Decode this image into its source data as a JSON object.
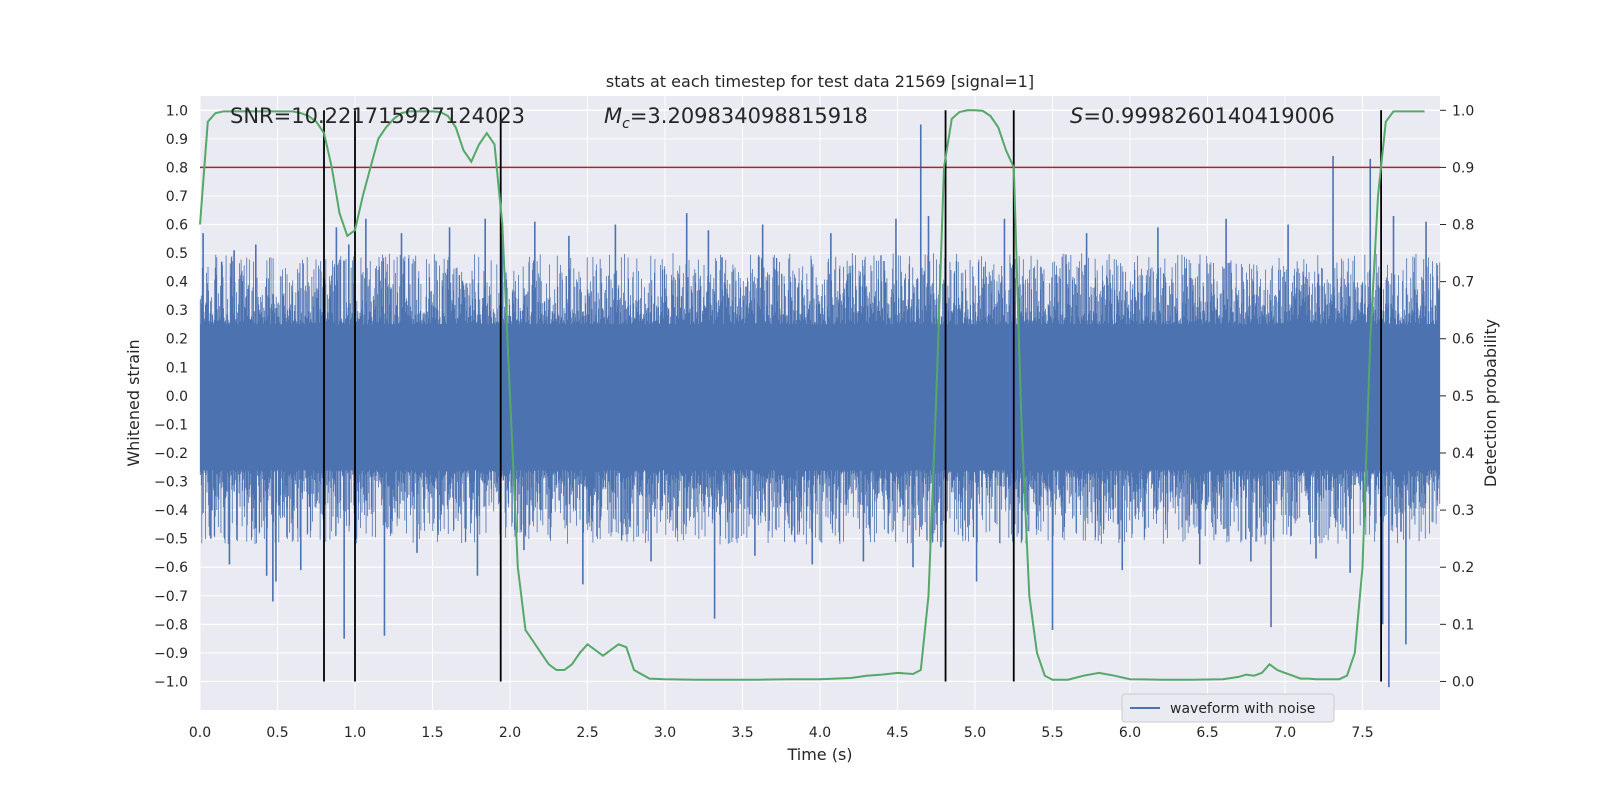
{
  "chart_data": {
    "type": "line",
    "title": "stats at each timestep for test data 21569 [signal=1]",
    "xlabel": "Time (s)",
    "ylabel": "Whitened strain",
    "y2label": "Detection probability",
    "xlim": [
      0.0,
      8.0
    ],
    "ylim": [
      -1.1,
      1.05
    ],
    "y2lim": [
      -0.05,
      1.025
    ],
    "xticks": [
      "0.0",
      "0.5",
      "1.0",
      "1.5",
      "2.0",
      "2.5",
      "3.0",
      "3.5",
      "4.0",
      "4.5",
      "5.0",
      "5.5",
      "6.0",
      "6.5",
      "7.0",
      "7.5"
    ],
    "yticks": [
      "1.0",
      "0.9",
      "0.8",
      "0.7",
      "0.6",
      "0.5",
      "0.4",
      "0.3",
      "0.2",
      "0.1",
      "0.0",
      "−0.1",
      "−0.2",
      "−0.3",
      "−0.4",
      "−0.5",
      "−0.6",
      "−0.7",
      "−0.8",
      "−0.9",
      "−1.0"
    ],
    "y2ticks": [
      "1.0",
      "0.9",
      "0.8",
      "0.7",
      "0.6",
      "0.5",
      "0.4",
      "0.3",
      "0.2",
      "0.1",
      "0.0"
    ],
    "annotations": {
      "snr": "SNR=10.221715927124023",
      "mc_symbol": "M",
      "mc_sub": "c",
      "mc_value": "=3.209834098815918",
      "s_symbol": "S",
      "s_value": "=0.9998260140419006"
    },
    "legend": {
      "label": "waveform with noise",
      "position": "lower right"
    },
    "grid": true,
    "threshold": {
      "value": 0.9,
      "axis": "right",
      "color": "#b22222"
    },
    "vlines": [
      0.8,
      1.0,
      1.94,
      4.81,
      5.25,
      7.62
    ],
    "waveform": {
      "name": "waveform with noise",
      "color": "#4c72b0",
      "core_band": [
        -0.26,
        0.25
      ],
      "typical_range": [
        -0.42,
        0.4
      ],
      "spikes": [
        [
          0.02,
          0.57
        ],
        [
          0.07,
          -0.5
        ],
        [
          0.14,
          0.47
        ],
        [
          0.19,
          -0.59
        ],
        [
          0.22,
          0.51
        ],
        [
          0.36,
          0.53
        ],
        [
          0.43,
          -0.63
        ],
        [
          0.47,
          -0.72
        ],
        [
          0.49,
          -0.65
        ],
        [
          0.65,
          -0.61
        ],
        [
          0.88,
          0.59
        ],
        [
          0.93,
          -0.85
        ],
        [
          0.96,
          0.53
        ],
        [
          1.07,
          0.62
        ],
        [
          1.19,
          -0.84
        ],
        [
          1.3,
          0.57
        ],
        [
          1.4,
          -0.55
        ],
        [
          1.61,
          0.59
        ],
        [
          1.79,
          -0.63
        ],
        [
          1.84,
          0.62
        ],
        [
          1.95,
          0.57
        ],
        [
          2.09,
          -0.54
        ],
        [
          2.16,
          0.61
        ],
        [
          2.38,
          0.56
        ],
        [
          2.47,
          -0.66
        ],
        [
          2.68,
          0.6
        ],
        [
          2.91,
          -0.58
        ],
        [
          3.14,
          0.64
        ],
        [
          3.28,
          0.58
        ],
        [
          3.32,
          -0.78
        ],
        [
          3.58,
          -0.56
        ],
        [
          3.63,
          0.6
        ],
        [
          3.95,
          -0.59
        ],
        [
          4.07,
          0.57
        ],
        [
          4.28,
          -0.58
        ],
        [
          4.49,
          0.62
        ],
        [
          4.6,
          -0.6
        ],
        [
          4.65,
          0.95
        ],
        [
          4.7,
          0.63
        ],
        [
          4.78,
          -0.53
        ],
        [
          5.01,
          -0.65
        ],
        [
          5.19,
          0.62
        ],
        [
          5.5,
          -0.82
        ],
        [
          5.72,
          0.57
        ],
        [
          5.95,
          -0.61
        ],
        [
          6.18,
          0.59
        ],
        [
          6.45,
          -0.59
        ],
        [
          6.62,
          0.62
        ],
        [
          6.78,
          -0.58
        ],
        [
          6.91,
          -0.81
        ],
        [
          7.02,
          0.6
        ],
        [
          7.2,
          -0.57
        ],
        [
          7.31,
          0.84
        ],
        [
          7.42,
          -0.62
        ],
        [
          7.55,
          0.83
        ],
        [
          7.63,
          -0.8
        ],
        [
          7.67,
          -1.02
        ],
        [
          7.7,
          0.63
        ],
        [
          7.78,
          -0.87
        ],
        [
          7.91,
          0.61
        ]
      ]
    },
    "probability": {
      "name": "Detection probability",
      "color": "#55a868",
      "x": [
        0.0,
        0.05,
        0.1,
        0.15,
        0.2,
        0.25,
        0.3,
        0.35,
        0.4,
        0.45,
        0.5,
        0.55,
        0.6,
        0.65,
        0.7,
        0.75,
        0.8,
        0.85,
        0.9,
        0.95,
        1.0,
        1.05,
        1.1,
        1.15,
        1.2,
        1.25,
        1.3,
        1.35,
        1.4,
        1.45,
        1.5,
        1.55,
        1.6,
        1.65,
        1.7,
        1.75,
        1.8,
        1.85,
        1.9,
        1.95,
        2.0,
        2.05,
        2.1,
        2.15,
        2.2,
        2.25,
        2.3,
        2.35,
        2.4,
        2.45,
        2.5,
        2.55,
        2.6,
        2.65,
        2.7,
        2.75,
        2.8,
        2.9,
        3.0,
        3.2,
        3.4,
        3.6,
        3.8,
        4.0,
        4.2,
        4.3,
        4.4,
        4.5,
        4.6,
        4.65,
        4.7,
        4.75,
        4.8,
        4.85,
        4.9,
        4.95,
        5.0,
        5.05,
        5.1,
        5.15,
        5.2,
        5.25,
        5.3,
        5.35,
        5.4,
        5.45,
        5.5,
        5.6,
        5.7,
        5.8,
        5.9,
        6.0,
        6.2,
        6.4,
        6.6,
        6.7,
        6.75,
        6.8,
        6.85,
        6.9,
        6.95,
        7.0,
        7.05,
        7.1,
        7.15,
        7.2,
        7.25,
        7.3,
        7.35,
        7.4,
        7.45,
        7.5,
        7.55,
        7.6,
        7.65,
        7.7,
        7.8,
        7.9
      ],
      "y": [
        0.8,
        0.98,
        0.995,
        0.998,
        0.998,
        0.998,
        0.998,
        0.998,
        0.998,
        0.998,
        0.998,
        0.998,
        0.998,
        0.995,
        0.99,
        0.98,
        0.96,
        0.9,
        0.82,
        0.78,
        0.79,
        0.85,
        0.9,
        0.95,
        0.97,
        0.985,
        0.995,
        0.998,
        0.998,
        0.998,
        0.998,
        0.997,
        0.99,
        0.97,
        0.93,
        0.91,
        0.94,
        0.96,
        0.94,
        0.8,
        0.5,
        0.2,
        0.09,
        0.07,
        0.05,
        0.03,
        0.02,
        0.02,
        0.03,
        0.05,
        0.065,
        0.055,
        0.045,
        0.055,
        0.065,
        0.06,
        0.02,
        0.005,
        0.004,
        0.003,
        0.003,
        0.003,
        0.004,
        0.004,
        0.006,
        0.01,
        0.012,
        0.015,
        0.013,
        0.02,
        0.15,
        0.5,
        0.9,
        0.985,
        0.997,
        1.0,
        1.0,
        0.999,
        0.99,
        0.97,
        0.93,
        0.9,
        0.45,
        0.15,
        0.05,
        0.01,
        0.003,
        0.003,
        0.01,
        0.015,
        0.01,
        0.004,
        0.003,
        0.003,
        0.004,
        0.008,
        0.012,
        0.01,
        0.015,
        0.03,
        0.02,
        0.015,
        0.01,
        0.005,
        0.005,
        0.004,
        0.004,
        0.004,
        0.004,
        0.01,
        0.05,
        0.2,
        0.6,
        0.85,
        0.98,
        0.998,
        0.998,
        0.998
      ]
    }
  }
}
